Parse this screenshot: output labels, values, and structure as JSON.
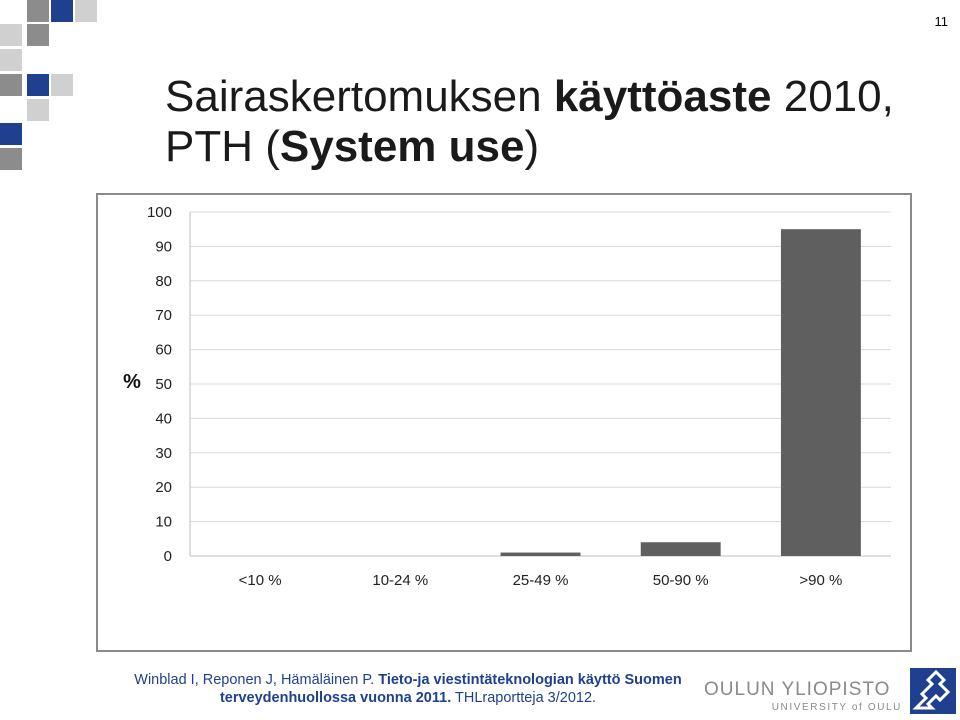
{
  "slide": {
    "number": "11",
    "title_part1": "Sairaskertomuksen ",
    "title_bold1": "käyttöaste",
    "title_part2": " 2010,",
    "title_part3": "PTH (",
    "title_bold2": "System use",
    "title_part4": ")"
  },
  "colors": {
    "brand_blue": "#1f3f8f",
    "decor_gray": "#8c8c8c",
    "decor_light": "#d0d0d0",
    "bar": "#5f5f5f",
    "grid": "#d9d9d9"
  },
  "citation": {
    "part1": "Winblad I, Reponen J, Hämäläinen P. ",
    "bold": "Tieto-ja viestintäteknologian käyttö Suomen terveydenhuollossa vuonna 2011.",
    "part2": " THLraportteja 3/2012."
  },
  "university": {
    "name": "OULUN YLIOPISTO",
    "sub": "UNIVERSITY of OULU"
  },
  "chart_data": {
    "type": "bar",
    "categories": [
      "<10 %",
      "10-24 %",
      "25-49 %",
      "50-90 %",
      ">90 %"
    ],
    "values": [
      0,
      0,
      1,
      4,
      95
    ],
    "ylabel": "%",
    "ylim": [
      0,
      100
    ],
    "yticks": [
      0,
      10,
      20,
      30,
      40,
      50,
      60,
      70,
      80,
      90,
      100
    ],
    "grid": true,
    "legend": "none",
    "bar_color": "#5f5f5f"
  }
}
